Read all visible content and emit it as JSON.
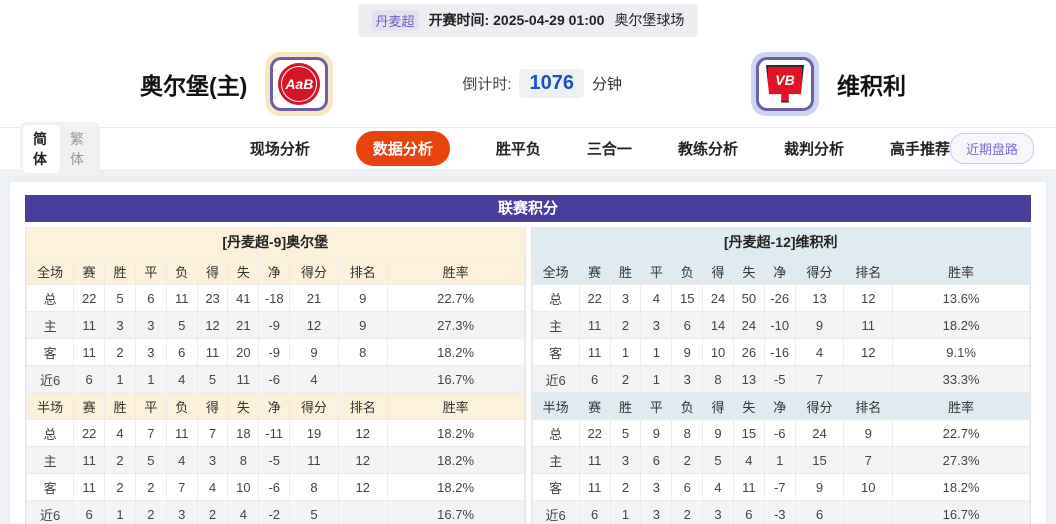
{
  "colors": {
    "purple": "#4a3e9d",
    "purple-text": "#6a5fc0",
    "orange": "#e8430d",
    "cream": "#fcf2dc",
    "lightblue": "#dfeaf1"
  },
  "topbar": {
    "league": "丹麦超",
    "kickoff_label": "开赛时间:",
    "kickoff_time": "2025-04-29 01:00",
    "venue": "奥尔堡球场"
  },
  "header": {
    "home_team": "奥尔堡(主)",
    "home_logo": "AaB",
    "away_team": "维积利",
    "away_logo": "VB",
    "countdown_label": "倒计时:",
    "countdown_value": "1076",
    "countdown_unit": "分钟"
  },
  "nav": {
    "lang": [
      {
        "label": "简体",
        "active": true
      },
      {
        "label": "繁体",
        "active": false
      }
    ],
    "tabs": [
      {
        "label": "现场分析",
        "active": false
      },
      {
        "label": "数据分析",
        "active": true
      },
      {
        "label": "胜平负",
        "active": false
      },
      {
        "label": "三合一",
        "active": false
      },
      {
        "label": "教练分析",
        "active": false
      },
      {
        "label": "裁判分析",
        "active": false
      },
      {
        "label": "高手推荐",
        "active": false
      }
    ],
    "recent_button": "近期盘路"
  },
  "league_table": {
    "title": "联赛积分",
    "columns": [
      "赛",
      "胜",
      "平",
      "负",
      "得",
      "失",
      "净",
      "得分",
      "排名",
      "胜率"
    ],
    "teams": [
      {
        "header": "[丹麦超-9]奥尔堡",
        "theme": "cream",
        "sections": [
          {
            "scope": "全场",
            "rows": [
              {
                "label": "总",
                "values": [
                  "22",
                  "5",
                  "6",
                  "11",
                  "23",
                  "41",
                  "-18",
                  "21",
                  "9",
                  "22.7%"
                ]
              },
              {
                "label": "主",
                "values": [
                  "11",
                  "3",
                  "3",
                  "5",
                  "12",
                  "21",
                  "-9",
                  "12",
                  "9",
                  "27.3%"
                ]
              },
              {
                "label": "客",
                "values": [
                  "11",
                  "2",
                  "3",
                  "6",
                  "11",
                  "20",
                  "-9",
                  "9",
                  "8",
                  "18.2%"
                ]
              },
              {
                "label": "近6",
                "values": [
                  "6",
                  "1",
                  "1",
                  "4",
                  "5",
                  "11",
                  "-6",
                  "4",
                  "",
                  "16.7%"
                ]
              }
            ]
          },
          {
            "scope": "半场",
            "rows": [
              {
                "label": "总",
                "values": [
                  "22",
                  "4",
                  "7",
                  "11",
                  "7",
                  "18",
                  "-11",
                  "19",
                  "12",
                  "18.2%"
                ]
              },
              {
                "label": "主",
                "values": [
                  "11",
                  "2",
                  "5",
                  "4",
                  "3",
                  "8",
                  "-5",
                  "11",
                  "12",
                  "18.2%"
                ]
              },
              {
                "label": "客",
                "values": [
                  "11",
                  "2",
                  "2",
                  "7",
                  "4",
                  "10",
                  "-6",
                  "8",
                  "12",
                  "18.2%"
                ]
              },
              {
                "label": "近6",
                "values": [
                  "6",
                  "1",
                  "2",
                  "3",
                  "2",
                  "4",
                  "-2",
                  "5",
                  "",
                  "16.7%"
                ]
              }
            ]
          }
        ]
      },
      {
        "header": "[丹麦超-12]维积利",
        "theme": "blue",
        "sections": [
          {
            "scope": "全场",
            "rows": [
              {
                "label": "总",
                "values": [
                  "22",
                  "3",
                  "4",
                  "15",
                  "24",
                  "50",
                  "-26",
                  "13",
                  "12",
                  "13.6%"
                ]
              },
              {
                "label": "主",
                "values": [
                  "11",
                  "2",
                  "3",
                  "6",
                  "14",
                  "24",
                  "-10",
                  "9",
                  "11",
                  "18.2%"
                ]
              },
              {
                "label": "客",
                "values": [
                  "11",
                  "1",
                  "1",
                  "9",
                  "10",
                  "26",
                  "-16",
                  "4",
                  "12",
                  "9.1%"
                ]
              },
              {
                "label": "近6",
                "values": [
                  "6",
                  "2",
                  "1",
                  "3",
                  "8",
                  "13",
                  "-5",
                  "7",
                  "",
                  "33.3%"
                ]
              }
            ]
          },
          {
            "scope": "半场",
            "rows": [
              {
                "label": "总",
                "values": [
                  "22",
                  "5",
                  "9",
                  "8",
                  "9",
                  "15",
                  "-6",
                  "24",
                  "9",
                  "22.7%"
                ]
              },
              {
                "label": "主",
                "values": [
                  "11",
                  "3",
                  "6",
                  "2",
                  "5",
                  "4",
                  "1",
                  "15",
                  "7",
                  "27.3%"
                ]
              },
              {
                "label": "客",
                "values": [
                  "11",
                  "2",
                  "3",
                  "6",
                  "4",
                  "11",
                  "-7",
                  "9",
                  "10",
                  "18.2%"
                ]
              },
              {
                "label": "近6",
                "values": [
                  "6",
                  "1",
                  "3",
                  "2",
                  "3",
                  "6",
                  "-3",
                  "6",
                  "",
                  "16.7%"
                ]
              }
            ]
          }
        ]
      }
    ]
  }
}
